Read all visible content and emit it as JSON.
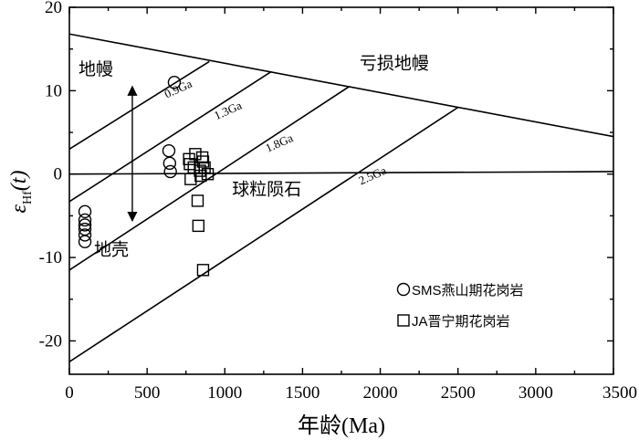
{
  "chart_data": {
    "type": "scatter",
    "xlabel": "年龄(Ma)",
    "ylabel": "εHf(t)",
    "xlim": [
      0,
      3500
    ],
    "ylim": [
      -24,
      20
    ],
    "x_ticks": [
      0,
      500,
      1000,
      1500,
      2000,
      2500,
      3000,
      3500
    ],
    "y_ticks": [
      -20,
      -10,
      0,
      10,
      20
    ],
    "ylabel_parts": {
      "main": "ε",
      "sub": "Hf",
      "arg": "(t)"
    },
    "reference_lines": [
      {
        "name": "亏损地幔",
        "points": [
          [
            0,
            16.8
          ],
          [
            3500,
            4.5
          ]
        ]
      },
      {
        "name": "球粒陨石",
        "points": [
          [
            0,
            0
          ],
          [
            3500,
            0.3
          ]
        ]
      },
      {
        "name": "0.9Ga",
        "points": [
          [
            0,
            3.0
          ],
          [
            900,
            13.5
          ]
        ],
        "label_at": [
          710,
          9.8
        ],
        "label_angle_deg": -24
      },
      {
        "name": "1.3Ga",
        "points": [
          [
            0,
            -3.3
          ],
          [
            1300,
            12.3
          ]
        ],
        "label_at": [
          1030,
          7.2
        ],
        "label_angle_deg": -24
      },
      {
        "name": "1.8Ga",
        "points": [
          [
            0,
            -11.5
          ],
          [
            1800,
            10.5
          ]
        ],
        "label_at": [
          1360,
          3.3
        ],
        "label_angle_deg": -24
      },
      {
        "name": "2.5Ga",
        "points": [
          [
            0,
            -22.5
          ],
          [
            2500,
            8.0
          ]
        ],
        "label_at": [
          1960,
          -0.6
        ],
        "label_angle_deg": -24
      }
    ],
    "region_labels": [
      {
        "text": "地幔",
        "at": [
          170,
          11.9
        ]
      },
      {
        "text": "亏损地幔",
        "at": [
          2090,
          12.6
        ]
      },
      {
        "text": "球粒陨石",
        "at": [
          1270,
          -2.5
        ]
      },
      {
        "text": "地壳",
        "at": [
          270,
          -9.7
        ]
      }
    ],
    "arrow": {
      "x": 405,
      "y_from": 3.2,
      "y_to": -5.6,
      "up_to": 10.5,
      "down_to": -5.6,
      "center": 3.2
    },
    "series": [
      {
        "name": "SMS燕山期花岗岩",
        "marker": "circle",
        "x": [
          675,
          640,
          645,
          650,
          100,
          100,
          100,
          100,
          100,
          100
        ],
        "y": [
          11.0,
          2.8,
          1.3,
          0.3,
          -4.5,
          -5.5,
          -6.1,
          -6.6,
          -7.3,
          -8.1
        ]
      },
      {
        "name": "JA晋宁期花岗岩",
        "marker": "square",
        "x": [
          810,
          855,
          860,
          770,
          775,
          800,
          840,
          870,
          845,
          890,
          780,
          825,
          830,
          860
        ],
        "y": [
          2.4,
          2.0,
          1.5,
          1.8,
          1.2,
          0.8,
          0.4,
          0.8,
          -0.2,
          0.0,
          -0.6,
          -3.2,
          -6.2,
          -11.5
        ]
      }
    ],
    "legend": {
      "placement": "bottom-right"
    }
  }
}
